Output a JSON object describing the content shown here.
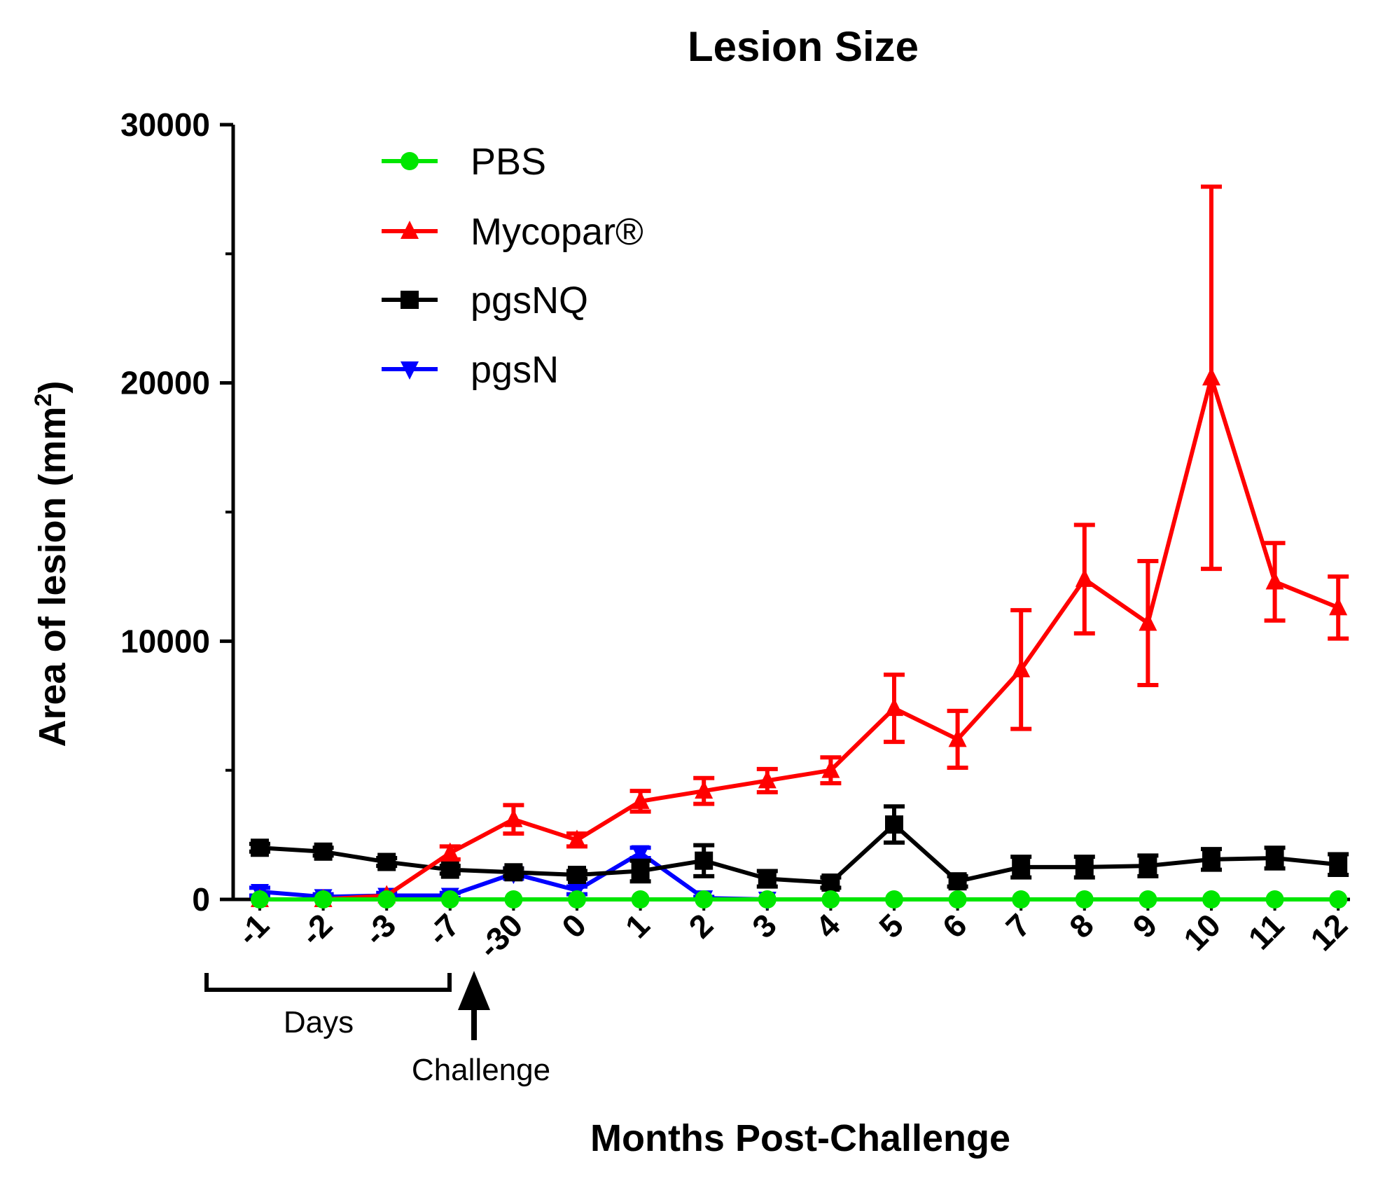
{
  "chart_data": {
    "type": "line",
    "title": "Lesion Size",
    "xlabel": "Months Post-Challenge",
    "ylabel": "Area of lesion (mm",
    "ylabel_sup": "2",
    "ylabel_close": ")",
    "ylim": [
      0,
      30000
    ],
    "yticks": [
      "0",
      "10000",
      "20000",
      "30000"
    ],
    "categories": [
      "-1",
      "-2",
      "-3",
      "-7",
      "-30",
      "0",
      "1",
      "2",
      "3",
      "4",
      "5",
      "6",
      "7",
      "8",
      "9",
      "10",
      "11",
      "12"
    ],
    "series": [
      {
        "name": "PBS",
        "color": "#00e600",
        "marker": "circle",
        "values": [
          0,
          0,
          0,
          0,
          0,
          0,
          0,
          0,
          0,
          0,
          0,
          0,
          0,
          0,
          0,
          0,
          0,
          0
        ],
        "errors": [
          0,
          0,
          0,
          0,
          0,
          0,
          0,
          0,
          0,
          0,
          0,
          0,
          0,
          0,
          0,
          0,
          0,
          0
        ]
      },
      {
        "name": "Mycopar®",
        "color": "#ff0000",
        "marker": "triangle-up",
        "values": [
          0,
          0,
          150,
          1800,
          3100,
          2300,
          3800,
          4200,
          4600,
          5000,
          7400,
          6200,
          8900,
          12400,
          10700,
          20200,
          12300,
          11300
        ],
        "errors": [
          0,
          0,
          0,
          250,
          550,
          250,
          400,
          500,
          450,
          500,
          1300,
          1100,
          2300,
          2100,
          2400,
          7400,
          1500,
          1200
        ]
      },
      {
        "name": "pgsNQ",
        "color": "#000000",
        "marker": "square",
        "values": [
          2000,
          1850,
          1450,
          1150,
          1050,
          950,
          1100,
          1500,
          800,
          650,
          2900,
          700,
          1250,
          1250,
          1300,
          1550,
          1600,
          1350
        ],
        "errors": [
          150,
          150,
          150,
          150,
          150,
          150,
          400,
          600,
          300,
          200,
          700,
          200,
          400,
          400,
          400,
          400,
          400,
          400
        ]
      },
      {
        "name": "pgsN",
        "color": "#0000ff",
        "marker": "triangle-down",
        "values": [
          300,
          100,
          150,
          150,
          1000,
          350,
          1800,
          50,
          0,
          null,
          null,
          null,
          null,
          null,
          null,
          null,
          null,
          null
        ],
        "errors": [
          150,
          100,
          100,
          100,
          200,
          150,
          200,
          50,
          0,
          null,
          null,
          null,
          null,
          null,
          null,
          null,
          null,
          null
        ]
      }
    ],
    "legend": "top-left",
    "annotations": {
      "days_label": "Days",
      "challenge_label": "Challenge"
    }
  }
}
